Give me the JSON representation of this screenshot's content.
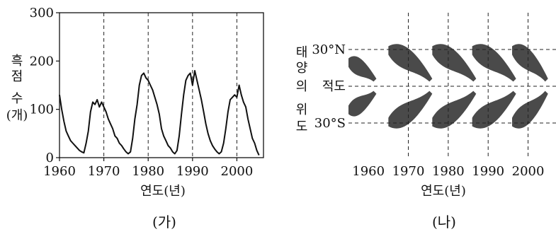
{
  "chart_data": [
    {
      "type": "line",
      "panel_label": "(가)",
      "xlabel": "연도(년)",
      "ylabel_lines": [
        "흑",
        "점",
        "수",
        "(개)"
      ],
      "xlim": [
        1960,
        2006
      ],
      "ylim": [
        0,
        300
      ],
      "xticks": [
        1960,
        1970,
        1980,
        1990,
        2000
      ],
      "yticks": [
        0,
        100,
        200,
        300
      ],
      "grid": "vertical dashed lines at 1970, 1980, 1990, 2000",
      "x": [
        1960,
        1960.5,
        1961,
        1961.5,
        1962,
        1962.5,
        1963,
        1963.5,
        1964,
        1964.5,
        1965,
        1965.5,
        1966,
        1966.5,
        1967,
        1967.5,
        1968,
        1968.5,
        1969,
        1969.5,
        1970,
        1970.5,
        1971,
        1971.5,
        1972,
        1972.5,
        1973,
        1973.5,
        1974,
        1974.5,
        1975,
        1975.5,
        1976,
        1976.5,
        1977,
        1977.5,
        1978,
        1978.5,
        1979,
        1979.5,
        1980,
        1980.5,
        1981,
        1981.5,
        1982,
        1982.5,
        1983,
        1983.5,
        1984,
        1984.5,
        1985,
        1985.5,
        1986,
        1986.5,
        1987,
        1987.5,
        1988,
        1988.5,
        1989,
        1989.5,
        1990,
        1990.5,
        1991,
        1991.5,
        1992,
        1992.5,
        1993,
        1993.5,
        1994,
        1994.5,
        1995,
        1995.5,
        1996,
        1996.5,
        1997,
        1997.5,
        1998,
        1998.5,
        1999,
        1999.5,
        2000,
        2000.5,
        2001,
        2001.5,
        2002,
        2002.5,
        2003,
        2003.5,
        2004,
        2004.5,
        2005
      ],
      "y": [
        130,
        100,
        75,
        55,
        45,
        35,
        30,
        25,
        20,
        15,
        12,
        10,
        30,
        55,
        95,
        115,
        110,
        120,
        105,
        115,
        105,
        95,
        80,
        70,
        60,
        45,
        40,
        30,
        25,
        18,
        12,
        8,
        12,
        40,
        80,
        110,
        150,
        170,
        175,
        165,
        160,
        150,
        140,
        125,
        110,
        90,
        60,
        45,
        35,
        25,
        20,
        12,
        8,
        15,
        45,
        90,
        130,
        160,
        170,
        175,
        150,
        180,
        160,
        140,
        120,
        95,
        70,
        50,
        35,
        25,
        18,
        12,
        8,
        12,
        30,
        60,
        95,
        120,
        125,
        130,
        125,
        150,
        130,
        115,
        105,
        80,
        60,
        40,
        30,
        15,
        5
      ]
    },
    {
      "type": "scatter",
      "panel_label": "(나)",
      "xlabel": "연도(년)",
      "ylabel_lines": [
        "태",
        "양",
        "의",
        "위",
        "도"
      ],
      "xlim": [
        1955,
        2007
      ],
      "ylim": [
        -45,
        45
      ],
      "xticks": [
        1960,
        1970,
        1980,
        1990,
        2000
      ],
      "ytick_labels": [
        "30°N",
        "적도",
        "30°S"
      ],
      "ytick_values": [
        30,
        0,
        -30
      ],
      "grid": "vertical dashed lines at 1970, 1980, 1990, 2000; horizontal dashed lines at 30°N, 0, 30°S",
      "color": "#4a4a4a",
      "wings": [
        {
          "x": [
            1955,
            1962
          ],
          "lat": [
            5,
            25
          ]
        },
        {
          "x": [
            1965,
            1976
          ],
          "lat": [
            5,
            35
          ]
        },
        {
          "x": [
            1976,
            1987
          ],
          "lat": [
            5,
            35
          ]
        },
        {
          "x": [
            1986,
            1997
          ],
          "lat": [
            5,
            35
          ]
        },
        {
          "x": [
            1996,
            2005
          ],
          "lat": [
            5,
            35
          ]
        }
      ]
    }
  ]
}
